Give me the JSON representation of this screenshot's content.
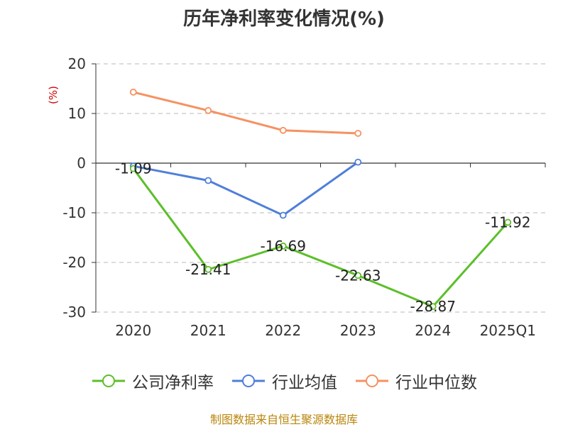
{
  "header": {
    "title": "历年净利率变化情况(%)"
  },
  "footer": {
    "source": "制图数据来自恒生聚源数据库"
  },
  "colors": {
    "company": "#5cbf2a",
    "industry_avg": "#4f7fd9",
    "industry_median": "#f59262",
    "grid": "#c8c8c8",
    "axis": "#333333"
  },
  "chart_data": {
    "type": "line",
    "title": "历年净利率变化情况(%)",
    "ylabel": "(%)",
    "xlabel": "",
    "categories": [
      "2020",
      "2021",
      "2022",
      "2023",
      "2024",
      "2025Q1"
    ],
    "ylim": [
      -30,
      20
    ],
    "yticks": [
      20,
      10,
      0,
      -10,
      -20,
      -30
    ],
    "grid": true,
    "legend_position": "bottom",
    "series": [
      {
        "name": "公司净利率",
        "color": "#5cbf2a",
        "values": [
          -1.09,
          -21.41,
          -16.69,
          -22.63,
          -28.87,
          -11.92
        ],
        "labels": [
          "-1.09",
          "-21.41",
          "-16.69",
          "-22.63",
          "-28.87",
          "-11.92"
        ]
      },
      {
        "name": "行业均值",
        "color": "#4f7fd9",
        "values": [
          -0.6,
          -3.5,
          -10.5,
          0.2,
          null,
          null
        ]
      },
      {
        "name": "行业中位数",
        "color": "#f59262",
        "values": [
          14.3,
          10.6,
          6.6,
          6.0,
          null,
          null
        ]
      }
    ]
  }
}
